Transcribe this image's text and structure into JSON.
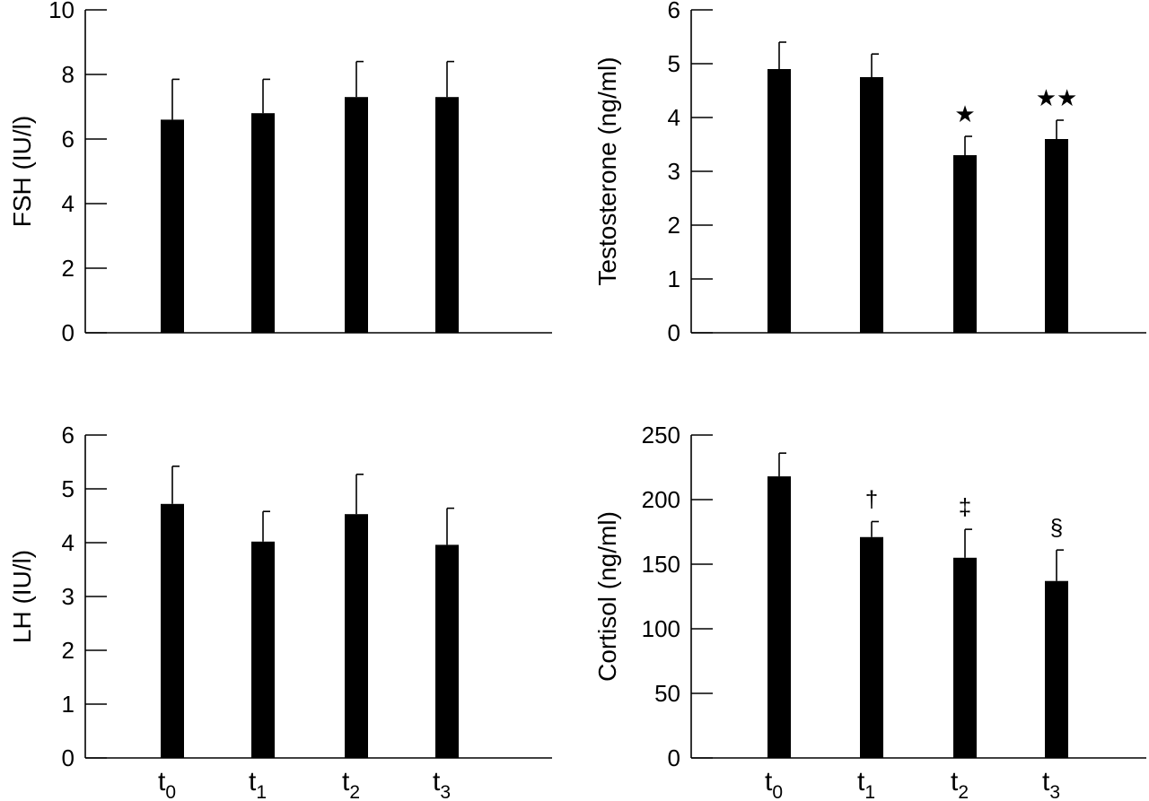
{
  "chart_data": [
    {
      "type": "bar",
      "panel": "top-left",
      "ylabel": "FSH (IU/l)",
      "ylim": [
        0,
        10
      ],
      "yticks": [
        0,
        2,
        4,
        6,
        8,
        10
      ],
      "categories": [
        "t0",
        "t1",
        "t2",
        "t3"
      ],
      "values": [
        6.6,
        6.8,
        7.3,
        7.3
      ],
      "error_upper": [
        7.85,
        7.85,
        8.4,
        8.4
      ],
      "annotations": [
        "",
        "",
        "",
        ""
      ],
      "show_x_labels": false
    },
    {
      "type": "bar",
      "panel": "top-right",
      "ylabel": "Testosterone (ng/ml)",
      "ylim": [
        0,
        6
      ],
      "yticks": [
        0,
        1,
        2,
        3,
        4,
        5,
        6
      ],
      "categories": [
        "t0",
        "t1",
        "t2",
        "t3"
      ],
      "values": [
        4.9,
        4.75,
        3.3,
        3.6
      ],
      "error_upper": [
        5.4,
        5.18,
        3.65,
        3.95
      ],
      "annotations": [
        "",
        "",
        "★",
        "★★"
      ],
      "show_x_labels": false
    },
    {
      "type": "bar",
      "panel": "bottom-left",
      "ylabel": "LH (IU/l)",
      "ylim": [
        0,
        6
      ],
      "yticks": [
        0,
        1,
        2,
        3,
        4,
        5,
        6
      ],
      "categories": [
        "t0",
        "t1",
        "t2",
        "t3"
      ],
      "values": [
        4.72,
        4.02,
        4.53,
        3.96
      ],
      "error_upper": [
        5.42,
        4.58,
        5.27,
        4.64
      ],
      "annotations": [
        "",
        "",
        "",
        ""
      ],
      "show_x_labels": true
    },
    {
      "type": "bar",
      "panel": "bottom-right",
      "ylabel": "Cortisol (ng/ml)",
      "ylim": [
        0,
        250
      ],
      "yticks": [
        0,
        50,
        100,
        150,
        200,
        250
      ],
      "categories": [
        "t0",
        "t1",
        "t2",
        "t3"
      ],
      "values": [
        218,
        171,
        155,
        137
      ],
      "error_upper": [
        236,
        183,
        177,
        161
      ],
      "annotations": [
        "",
        "†",
        "‡",
        "§"
      ],
      "show_x_labels": true
    }
  ]
}
